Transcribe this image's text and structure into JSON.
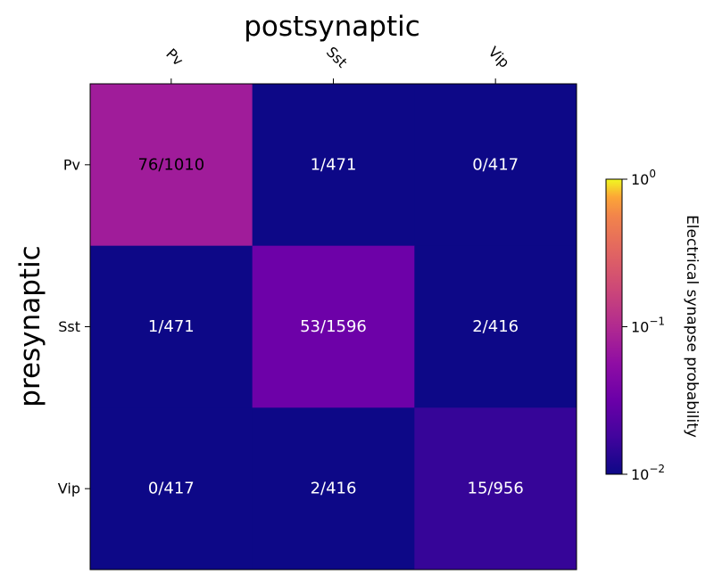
{
  "chart_data": {
    "type": "heatmap",
    "xlabel": "postsynaptic",
    "ylabel": "presynaptic",
    "x_categories": [
      "Pv",
      "Sst",
      "Vip"
    ],
    "y_categories": [
      "Pv",
      "Sst",
      "Vip"
    ],
    "values": [
      [
        0.0752,
        0.00212,
        0.0
      ],
      [
        0.00212,
        0.0332,
        0.00481
      ],
      [
        0.0,
        0.00481,
        0.0157
      ]
    ],
    "cell_labels": [
      [
        "76/1010",
        "1/471",
        "0/417"
      ],
      [
        "1/471",
        "53/1596",
        "2/416"
      ],
      [
        "0/417",
        "2/416",
        "15/956"
      ]
    ],
    "colorbar": {
      "label": "Electrical synapse probability",
      "scale": "log",
      "range": [
        0.01,
        1
      ],
      "colormap": "plasma",
      "tick_labels": [
        {
          "base": "10",
          "exp": "0"
        },
        {
          "base": "10",
          "exp": "−1"
        },
        {
          "base": "10",
          "exp": "−2"
        }
      ]
    }
  }
}
